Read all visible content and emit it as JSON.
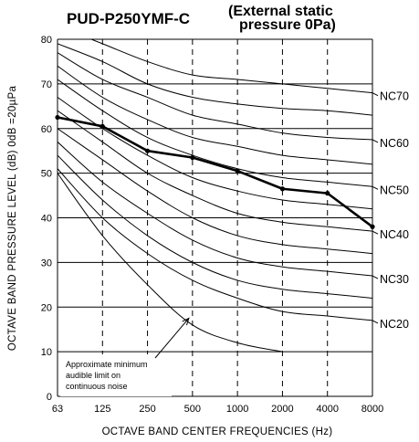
{
  "chart_data": {
    "type": "line",
    "title": "PUD-P250YMF-C",
    "subtitle": [
      "(External static",
      "pressure 0Pa)"
    ],
    "xlabel": "OCTAVE  BAND  CENTER  FREQUENCIES (Hz)",
    "ylabel": "OCTAVE  BAND  PRESSURE  LEVEL (dB) 0dB =20µPa",
    "x_scale": "log2",
    "categories": [
      "63",
      "125",
      "250",
      "500",
      "1000",
      "2000",
      "4000",
      "8000"
    ],
    "x": [
      63,
      125,
      250,
      500,
      1000,
      2000,
      4000,
      8000
    ],
    "ylim": [
      0,
      80
    ],
    "yticks": [
      0,
      10,
      20,
      30,
      40,
      50,
      60,
      70,
      80
    ],
    "grid": {
      "horizontal": true,
      "vertical": "dashed"
    },
    "series": [
      {
        "values": [
          62.5,
          60.5,
          55,
          53.5,
          50.5,
          46.5,
          45.5,
          38
        ]
      }
    ],
    "nc_curves": [
      {
        "name": "NC70",
        "values": [
          83,
          79,
          75,
          72,
          71,
          70,
          69,
          68
        ]
      },
      {
        "name": "",
        "values": [
          79,
          75,
          70,
          67,
          65.5,
          64.5,
          64,
          63
        ]
      },
      {
        "name": "NC60",
        "values": [
          77,
          71,
          67,
          63,
          61,
          59,
          58,
          57.5
        ]
      },
      {
        "name": "",
        "values": [
          74,
          67,
          62,
          58,
          56,
          54,
          53,
          52
        ]
      },
      {
        "name": "NC50",
        "values": [
          71,
          64,
          58,
          54,
          51,
          49,
          48,
          47
        ]
      },
      {
        "name": "",
        "values": [
          67,
          60,
          54,
          49,
          46,
          44,
          43,
          42
        ]
      },
      {
        "name": "NC40",
        "values": [
          64,
          57,
          50,
          45,
          41,
          39,
          38,
          37
        ]
      },
      {
        "name": "",
        "values": [
          60,
          53,
          46,
          40,
          36,
          34,
          33,
          32
        ]
      },
      {
        "name": "NC30",
        "values": [
          57,
          48,
          41,
          35,
          31,
          29,
          28,
          27
        ]
      },
      {
        "name": "",
        "values": [
          54,
          44,
          36,
          30,
          26,
          24,
          23,
          22
        ]
      },
      {
        "name": "NC20",
        "values": [
          51,
          40,
          32,
          26,
          22,
          19,
          18,
          17
        ]
      }
    ],
    "audible_limit": {
      "values": [
        50,
        36,
        25,
        16,
        12,
        10
      ]
    },
    "annotation": [
      "Approximate minimum",
      "audible limit on",
      "continuous noise"
    ]
  },
  "colors": {
    "line": "#000000",
    "background": "#ffffff"
  }
}
